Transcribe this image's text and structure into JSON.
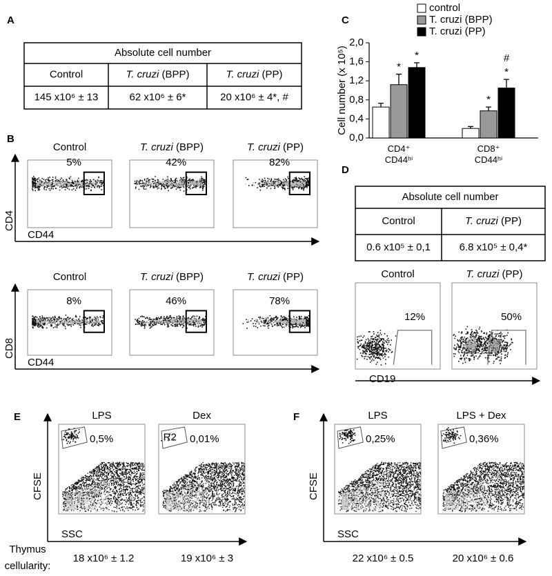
{
  "panel_a": {
    "letter": "A",
    "table": {
      "title": "Absolute cell number",
      "headers": [
        {
          "text": "Control"
        },
        {
          "italic": "T. cruzi",
          "text": "(BPP)"
        },
        {
          "italic": "T. cruzi",
          "text": "(PP)"
        }
      ],
      "values": [
        "145 x10⁶ ± 13",
        "62 x10⁶ ± 6*",
        "20 x10⁶ ± 4*, #"
      ]
    }
  },
  "panel_b": {
    "letter": "B",
    "rows": [
      {
        "y_label": "CD4",
        "x_label": "CD44",
        "plots": [
          {
            "title": {
              "text": "Control"
            },
            "percent": "5%"
          },
          {
            "title": {
              "italic": "T. cruzi",
              "text": "(BPP)"
            },
            "percent": "42%"
          },
          {
            "title": {
              "italic": "T. cruzi",
              "text": "(PP)"
            },
            "percent": "82%"
          }
        ]
      },
      {
        "y_label": "CD8",
        "x_label": "CD44",
        "plots": [
          {
            "title": {
              "text": "Control"
            },
            "percent": "8%"
          },
          {
            "title": {
              "italic": "T. cruzi",
              "text": "(BPP)"
            },
            "percent": "46%"
          },
          {
            "title": {
              "italic": "T. cruzi",
              "text": "(PP)"
            },
            "percent": "78%"
          }
        ]
      }
    ]
  },
  "chart_data": {
    "type": "bar",
    "panel_label": "C",
    "y_label": "Cell number (x 10⁵)",
    "categories": [
      "CD4⁺\nCD44ʰⁱ",
      "CD8⁺\nCD44ʰⁱ"
    ],
    "series": [
      {
        "name": "control",
        "color": "#ffffff",
        "values": [
          0.65,
          0.2
        ],
        "errors": [
          0.08,
          0.04
        ]
      },
      {
        "name": "T. cruzi (BPP)",
        "color": "#999999",
        "values": [
          1.12,
          0.57
        ],
        "errors": [
          0.22,
          0.08
        ],
        "significance": [
          [
            "*"
          ],
          [
            "*"
          ]
        ]
      },
      {
        "name": "T. cruzi (PP)",
        "color": "#000000",
        "values": [
          1.48,
          1.05
        ],
        "errors": [
          0.1,
          0.18
        ],
        "significance": [
          [
            "*"
          ],
          [
            "#",
            "*"
          ]
        ]
      }
    ],
    "ylim": [
      0,
      2
    ],
    "yticks": [
      {
        "value": 0,
        "label": "0,0"
      },
      {
        "value": 0.4,
        "label": "0,4"
      },
      {
        "value": 0.8,
        "label": "0,8"
      },
      {
        "value": 1.2,
        "label": "1,2"
      },
      {
        "value": 1.6,
        "label": "1,6"
      },
      {
        "value": 2,
        "label": "2,0"
      }
    ]
  },
  "panel_d": {
    "letter": "D",
    "table": {
      "title": "Absolute cell number",
      "headers": [
        {
          "text": "Control"
        },
        {
          "italic": "T. cruzi",
          "text": "(PP)"
        }
      ],
      "values": [
        "0.6 x10⁵ ± 0,1",
        "6.8 x10⁵ ± 0,4*"
      ]
    },
    "x_label": "CD19",
    "plots": [
      {
        "title": {
          "text": "Control"
        },
        "percent": "12%"
      },
      {
        "title": {
          "italic": "T. cruzi",
          "text": "(PP)"
        },
        "percent": "50%"
      }
    ]
  },
  "panel_e": {
    "letter": "E",
    "y_label": "CFSE",
    "x_label": "SSC",
    "plots": [
      {
        "title": "LPS",
        "percent": "0,5%"
      },
      {
        "title": "Dex",
        "percent": "0,01%",
        "gate": "R2"
      }
    ]
  },
  "panel_f": {
    "letter": "F",
    "y_label": "CFSE",
    "x_label": "SSC",
    "plots": [
      {
        "title": "LPS",
        "percent": "0,25%"
      },
      {
        "title": "LPS + Dex",
        "percent": "0,36%"
      }
    ]
  },
  "thymus": {
    "label_lines": [
      "Thymus",
      "cellularity:"
    ],
    "values": [
      "18 x10⁶ ± 1.2",
      "19 x10⁶ ± 3",
      "22 x10⁶ ± 0.5",
      "20 x10⁶ ± 0.6"
    ]
  }
}
